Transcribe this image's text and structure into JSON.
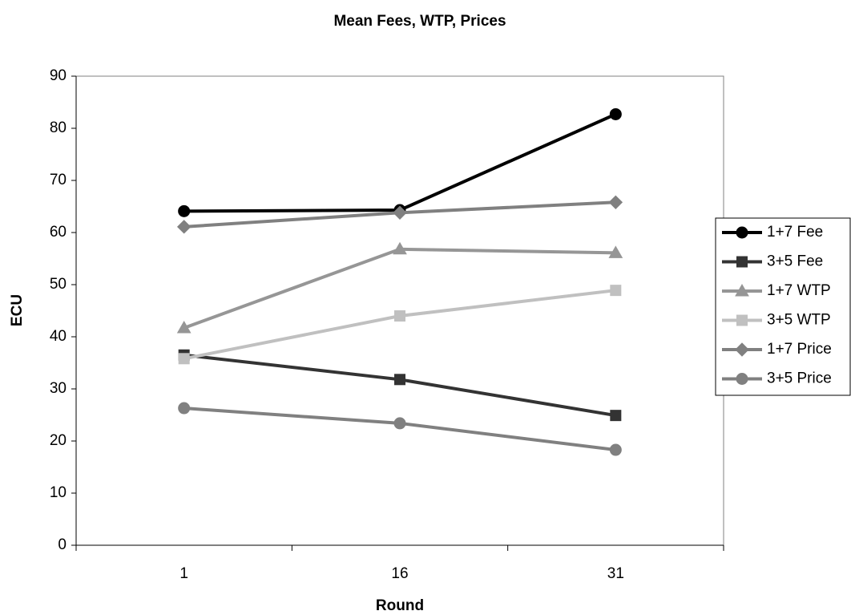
{
  "chart_data": {
    "type": "line",
    "title": "Mean Fees, WTP, Prices",
    "x_label": "Round",
    "y_label": "ECU",
    "categories": [
      "1",
      "16",
      "31"
    ],
    "series": [
      {
        "name": "1+7 Fee",
        "color": "#000000",
        "marker": "circle",
        "values": [
          64.1,
          64.3,
          82.7
        ]
      },
      {
        "name": "3+5 Fee",
        "color": "#333333",
        "marker": "square",
        "values": [
          36.5,
          31.8,
          24.9
        ]
      },
      {
        "name": "1+7 WTP",
        "color": "#969696",
        "marker": "triangle",
        "values": [
          41.7,
          56.8,
          56.1
        ]
      },
      {
        "name": "3+5 WTP",
        "color": "#c0c0c0",
        "marker": "square",
        "values": [
          35.8,
          44,
          48.9
        ]
      },
      {
        "name": "1+7 Price",
        "color": "#808080",
        "marker": "diamond",
        "values": [
          61.1,
          63.8,
          65.8
        ]
      },
      {
        "name": "3+5 Price",
        "color": "#808080",
        "marker": "circle",
        "values": [
          26.3,
          23.4,
          18.3
        ]
      }
    ],
    "ylim": [
      0,
      90
    ],
    "yticks": [
      0,
      10,
      20,
      30,
      40,
      50,
      60,
      70,
      80,
      90
    ],
    "grid": false,
    "legend": "right"
  }
}
